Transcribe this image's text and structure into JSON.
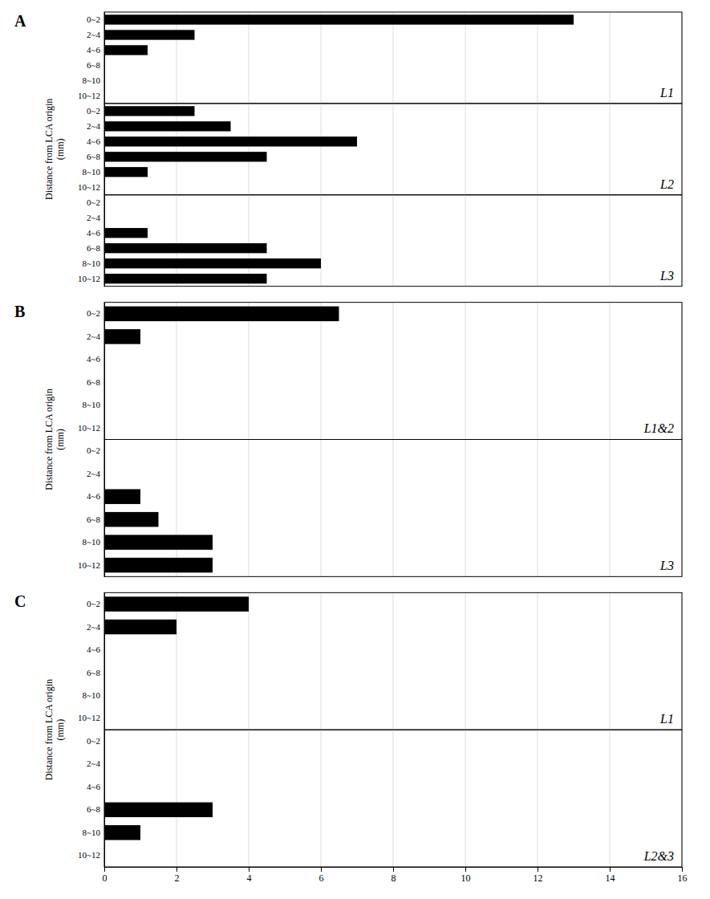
{
  "chart_data": [
    {
      "type": "bar",
      "orientation": "horizontal",
      "title": "A",
      "ylabel": "Distance from LCA origin\n(mm)",
      "annotations": [
        "L1"
      ],
      "categories": [
        "0~2",
        "2~4",
        "4~6",
        "6~8",
        "8~10",
        "10~12"
      ],
      "values": [
        13,
        2.5,
        1.2,
        0,
        0,
        0
      ],
      "color": "#000000",
      "xlim": [
        0,
        16
      ],
      "xticks": [
        0,
        2,
        4,
        6,
        8,
        10,
        12,
        14,
        16
      ],
      "grid": true,
      "tick_labels": "y"
    },
    {
      "type": "bar",
      "orientation": "horizontal",
      "annotations": [
        "L2"
      ],
      "categories": [
        "0~2",
        "2~4",
        "4~6",
        "6~8",
        "8~10",
        "10~12"
      ],
      "values": [
        2.5,
        3.5,
        7.0,
        4.5,
        1.2,
        0
      ],
      "color": "#000000",
      "xlim": [
        0,
        16
      ],
      "xticks": [
        0,
        2,
        4,
        6,
        8,
        10,
        12,
        14,
        16
      ],
      "grid": true,
      "tick_labels": "y"
    },
    {
      "type": "bar",
      "orientation": "horizontal",
      "annotations": [
        "L3"
      ],
      "categories": [
        "0~2",
        "2~4",
        "4~6",
        "6~8",
        "8~10",
        "10~12"
      ],
      "values": [
        0,
        0,
        1.2,
        4.5,
        6.0,
        4.5
      ],
      "color": "#000000",
      "xlim": [
        0,
        16
      ],
      "xticks": [
        0,
        2,
        4,
        6,
        8,
        10,
        12,
        14,
        16
      ],
      "grid": true,
      "tick_labels": "y"
    },
    {
      "type": "bar",
      "orientation": "horizontal",
      "title": "B",
      "ylabel": "Distance from LCA origin\n(mm)",
      "annotations": [
        "L1&2"
      ],
      "categories": [
        "0~2",
        "2~4",
        "4~6",
        "6~8",
        "8~10",
        "10~12"
      ],
      "values": [
        6.5,
        1.0,
        0,
        0,
        0,
        0
      ],
      "color": "#000000",
      "xlim": [
        0,
        16
      ],
      "xticks": [
        0,
        2,
        4,
        6,
        8,
        10,
        12,
        14,
        16
      ],
      "grid": true,
      "tick_labels": "y"
    },
    {
      "type": "bar",
      "orientation": "horizontal",
      "annotations": [
        "L3"
      ],
      "categories": [
        "0~2",
        "2~4",
        "4~6",
        "6~8",
        "8~10",
        "10~12"
      ],
      "values": [
        0,
        0,
        1.0,
        1.5,
        3.0,
        3.0
      ],
      "color": "#000000",
      "xlim": [
        0,
        16
      ],
      "xticks": [
        0,
        2,
        4,
        6,
        8,
        10,
        12,
        14,
        16
      ],
      "grid": true,
      "tick_labels": "y"
    },
    {
      "type": "bar",
      "orientation": "horizontal",
      "title": "C",
      "ylabel": "Distance from LCA origin\n(mm)",
      "annotations": [
        "L1"
      ],
      "categories": [
        "0~2",
        "2~4",
        "4~6",
        "6~8",
        "8~10",
        "10~12"
      ],
      "values": [
        4.0,
        2.0,
        0,
        0,
        0,
        0
      ],
      "color": "#000000",
      "xlim": [
        0,
        16
      ],
      "xticks": [
        0,
        2,
        4,
        6,
        8,
        10,
        12,
        14,
        16
      ],
      "grid": true,
      "tick_labels": "y"
    },
    {
      "type": "bar",
      "orientation": "horizontal",
      "annotations": [
        "L2&3"
      ],
      "categories": [
        "0~2",
        "2~4",
        "4~6",
        "6~8",
        "8~10",
        "10~12"
      ],
      "values": [
        0,
        0,
        0,
        3.0,
        1.0,
        0
      ],
      "color": "#000000",
      "xlim": [
        0,
        16
      ],
      "xticks": [
        0,
        2,
        4,
        6,
        8,
        10,
        12,
        14,
        16
      ],
      "grid": true
    }
  ]
}
